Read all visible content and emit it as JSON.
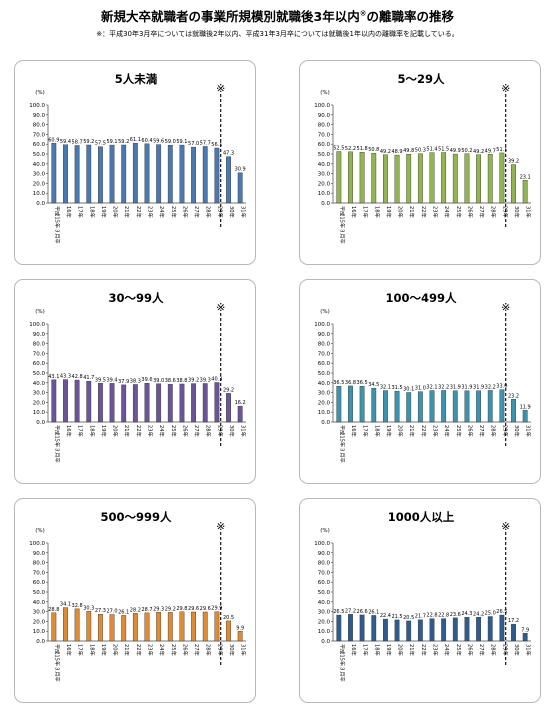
{
  "header": {
    "title_main": "新規大卒就職者の事業所規模別就職後3年以内",
    "title_mark": "※",
    "title_tail": "の離職率の推移",
    "note": "※：平成30年3月卒については就職後2年以内、平成31年3月卒については就職後1年以内の離職率を記載している。"
  },
  "chart_data": [
    {
      "type": "bar",
      "title": "5人未満",
      "ylabel": "(%)",
      "ylim": [
        0,
        100
      ],
      "yticks": [
        "100.0",
        "90.0",
        "80.0",
        "70.0",
        "60.0",
        "50.0",
        "40.0",
        "30.0",
        "20.0",
        "10.0",
        "0.0"
      ],
      "categories": [
        "平成15年３月卒",
        "16年",
        "17年",
        "18年",
        "19年",
        "20年",
        "21年",
        "22年",
        "23年",
        "24年",
        "25年",
        "26年",
        "27年",
        "28年",
        "29年",
        "30年",
        "31年"
      ],
      "values": [
        60.9,
        59.4,
        58.7,
        59.2,
        57.5,
        59.1,
        59.2,
        61.1,
        60.4,
        59.6,
        59.0,
        59.1,
        57.0,
        57.7,
        56.1,
        47.3,
        30.9
      ],
      "value_labels": [
        "60.9",
        "59.4",
        "58.7",
        "59.2",
        "57.5",
        "59.1",
        "59.2",
        "61.1",
        "60.4",
        "59.6",
        "59.0",
        "59.1",
        "57.0",
        "57.7",
        "56.1",
        "47.3",
        "30.9"
      ],
      "annotation": "※",
      "color": "#4a78b0"
    },
    {
      "type": "bar",
      "title": "5～29人",
      "ylabel": "(%)",
      "ylim": [
        0,
        100
      ],
      "yticks": [
        "100.0",
        "90.0",
        "80.0",
        "70.0",
        "60.0",
        "50.0",
        "40.0",
        "30.0",
        "20.0",
        "10.0",
        "0.0"
      ],
      "categories": [
        "平成15年３月卒",
        "16年",
        "17年",
        "18年",
        "19年",
        "20年",
        "21年",
        "22年",
        "23年",
        "24年",
        "25年",
        "26年",
        "27年",
        "28年",
        "29年",
        "30年",
        "31年"
      ],
      "values": [
        52.5,
        52.2,
        51.8,
        50.8,
        49.2,
        48.9,
        49.8,
        50.3,
        51.4,
        51.5,
        49.9,
        50.2,
        49.2,
        49.7,
        51.1,
        39.2,
        23.1
      ],
      "value_labels": [
        "52.5",
        "52.2",
        "51.8",
        "50.8",
        "49.2",
        "48.9",
        "49.8",
        "50.3",
        "51.4",
        "51.5",
        "49.9",
        "50.2",
        "49.2",
        "49.7",
        "51.1",
        "39.2",
        "23.1"
      ],
      "annotation": "※",
      "color": "#92b54f"
    },
    {
      "type": "bar",
      "title": "30～99人",
      "ylabel": "(%)",
      "ylim": [
        0,
        100
      ],
      "yticks": [
        "100.0",
        "90.0",
        "80.0",
        "70.0",
        "60.0",
        "50.0",
        "40.0",
        "30.0",
        "20.0",
        "10.0",
        "0.0"
      ],
      "categories": [
        "平成15年３月卒",
        "16年",
        "17年",
        "18年",
        "19年",
        "20年",
        "21年",
        "22年",
        "23年",
        "24年",
        "25年",
        "26年",
        "27年",
        "28年",
        "29年",
        "30年",
        "31年"
      ],
      "values": [
        43.1,
        43.3,
        42.8,
        41.7,
        39.5,
        39.4,
        37.9,
        38.3,
        39.6,
        39.0,
        38.6,
        38.8,
        39.2,
        39.3,
        40.3,
        29.2,
        16.2
      ],
      "value_labels": [
        "43.1",
        "43.3",
        "42.8",
        "41.7",
        "39.5",
        "39.4",
        "37.9",
        "38.3",
        "39.6",
        "39.0",
        "38.6",
        "38.8",
        "39.2",
        "39.3",
        "40.3",
        "29.2",
        "16.2"
      ],
      "annotation": "※",
      "color": "#6a5599"
    },
    {
      "type": "bar",
      "title": "100～499人",
      "ylabel": "(%)",
      "ylim": [
        0,
        100
      ],
      "yticks": [
        "100.0",
        "90.0",
        "80.0",
        "70.0",
        "60.0",
        "50.0",
        "40.0",
        "30.0",
        "20.0",
        "10.0",
        "0.0"
      ],
      "categories": [
        "平成15年３月卒",
        "16年",
        "17年",
        "18年",
        "19年",
        "20年",
        "21年",
        "22年",
        "23年",
        "24年",
        "25年",
        "26年",
        "27年",
        "28年",
        "29年",
        "30年",
        "31年"
      ],
      "values": [
        36.5,
        36.8,
        36.5,
        34.5,
        32.1,
        31.5,
        30.1,
        31.0,
        32.1,
        32.2,
        31.9,
        31.9,
        31.9,
        32.2,
        33.0,
        23.2,
        11.9
      ],
      "value_labels": [
        "36.5",
        "36.8",
        "36.5",
        "34.5",
        "32.1",
        "31.5",
        "30.1",
        "31.0",
        "32.1",
        "32.2",
        "31.9",
        "31.9",
        "31.9",
        "32.2",
        "33.0",
        "23.2",
        "11.9"
      ],
      "annotation": "※",
      "color": "#3c93ad"
    },
    {
      "type": "bar",
      "title": "500～999人",
      "ylabel": "(%)",
      "ylim": [
        0,
        100
      ],
      "yticks": [
        "100.0",
        "90.0",
        "80.0",
        "70.0",
        "60.0",
        "50.0",
        "40.0",
        "30.0",
        "20.0",
        "10.0",
        "0.0"
      ],
      "categories": [
        "平成15年３月卒",
        "16年",
        "17年",
        "18年",
        "19年",
        "20年",
        "21年",
        "22年",
        "23年",
        "24年",
        "25年",
        "26年",
        "27年",
        "28年",
        "29年",
        "30年",
        "31年"
      ],
      "values": [
        28.8,
        34.1,
        32.8,
        30.3,
        27.3,
        27.0,
        26.1,
        28.2,
        28.7,
        29.3,
        29.2,
        29.8,
        29.6,
        29.6,
        29.9,
        20.5,
        9.9
      ],
      "value_labels": [
        "28.8",
        "34.1",
        "32.8",
        "30.3",
        "27.3",
        "27.0",
        "26.1",
        "28.2",
        "28.7",
        "29.3",
        "29.2",
        "29.8",
        "29.6",
        "29.6",
        "29.9",
        "20.5",
        "9.9"
      ],
      "annotation": "※",
      "color": "#e08a34"
    },
    {
      "type": "bar",
      "title": "1000人以上",
      "ylabel": "(%)",
      "ylim": [
        0,
        100
      ],
      "yticks": [
        "100.0",
        "90.0",
        "80.0",
        "70.0",
        "60.0",
        "50.0",
        "40.0",
        "30.0",
        "20.0",
        "10.0",
        "0.0"
      ],
      "categories": [
        "平成15年３月卒",
        "16年",
        "17年",
        "18年",
        "19年",
        "20年",
        "21年",
        "22年",
        "23年",
        "24年",
        "25年",
        "26年",
        "27年",
        "28年",
        "29年",
        "30年",
        "31年"
      ],
      "values": [
        26.5,
        27.2,
        26.6,
        26.1,
        22.4,
        21.5,
        20.5,
        21.7,
        22.8,
        22.8,
        23.6,
        24.3,
        24.2,
        25.0,
        26.5,
        17.2,
        7.9
      ],
      "value_labels": [
        "26.5",
        "27.2",
        "26.6",
        "26.1",
        "22.4",
        "21.5",
        "20.5",
        "21.7",
        "22.8",
        "22.8",
        "23.6",
        "24.3",
        "24.2",
        "25.0",
        "26.5",
        "17.2",
        "7.9"
      ],
      "annotation": "※",
      "color": "#2f5c8f"
    }
  ]
}
